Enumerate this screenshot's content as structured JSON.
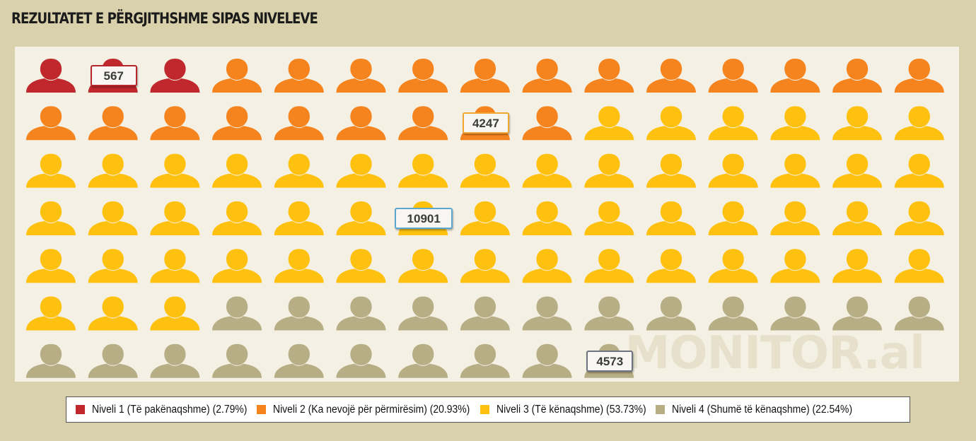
{
  "chart_data": {
    "type": "pictogram",
    "title": "REZULTATET E PËRGJITHSHME SIPAS NIVELEVE",
    "watermark": "MONITOR.al",
    "icon": "person-icon",
    "icons_per_row": 15,
    "categories": [
      {
        "name": "Niveli 1 (Të pakënaqshme) (2.79%)",
        "value": 567,
        "percent": 2.79,
        "icons": 3,
        "color": "#c0282e",
        "label": "567"
      },
      {
        "name": "Niveli 2 (Ka nevojë për përmirësim) (20.93%)",
        "value": 4247,
        "percent": 20.93,
        "icons": 21,
        "color": "#f5841f",
        "label": "4247"
      },
      {
        "name": "Niveli 3 (Të kënaqshme) (53.73%)",
        "value": 10901,
        "percent": 53.73,
        "icons": 54,
        "color": "#fec110",
        "label": "10901"
      },
      {
        "name": "Niveli 4 (Shumë të kënaqshme) (22.54%)",
        "value": 4573,
        "percent": 22.54,
        "icons": 22,
        "color": "#b8ae86",
        "label": "4573"
      }
    ],
    "legend_position": "bottom"
  }
}
